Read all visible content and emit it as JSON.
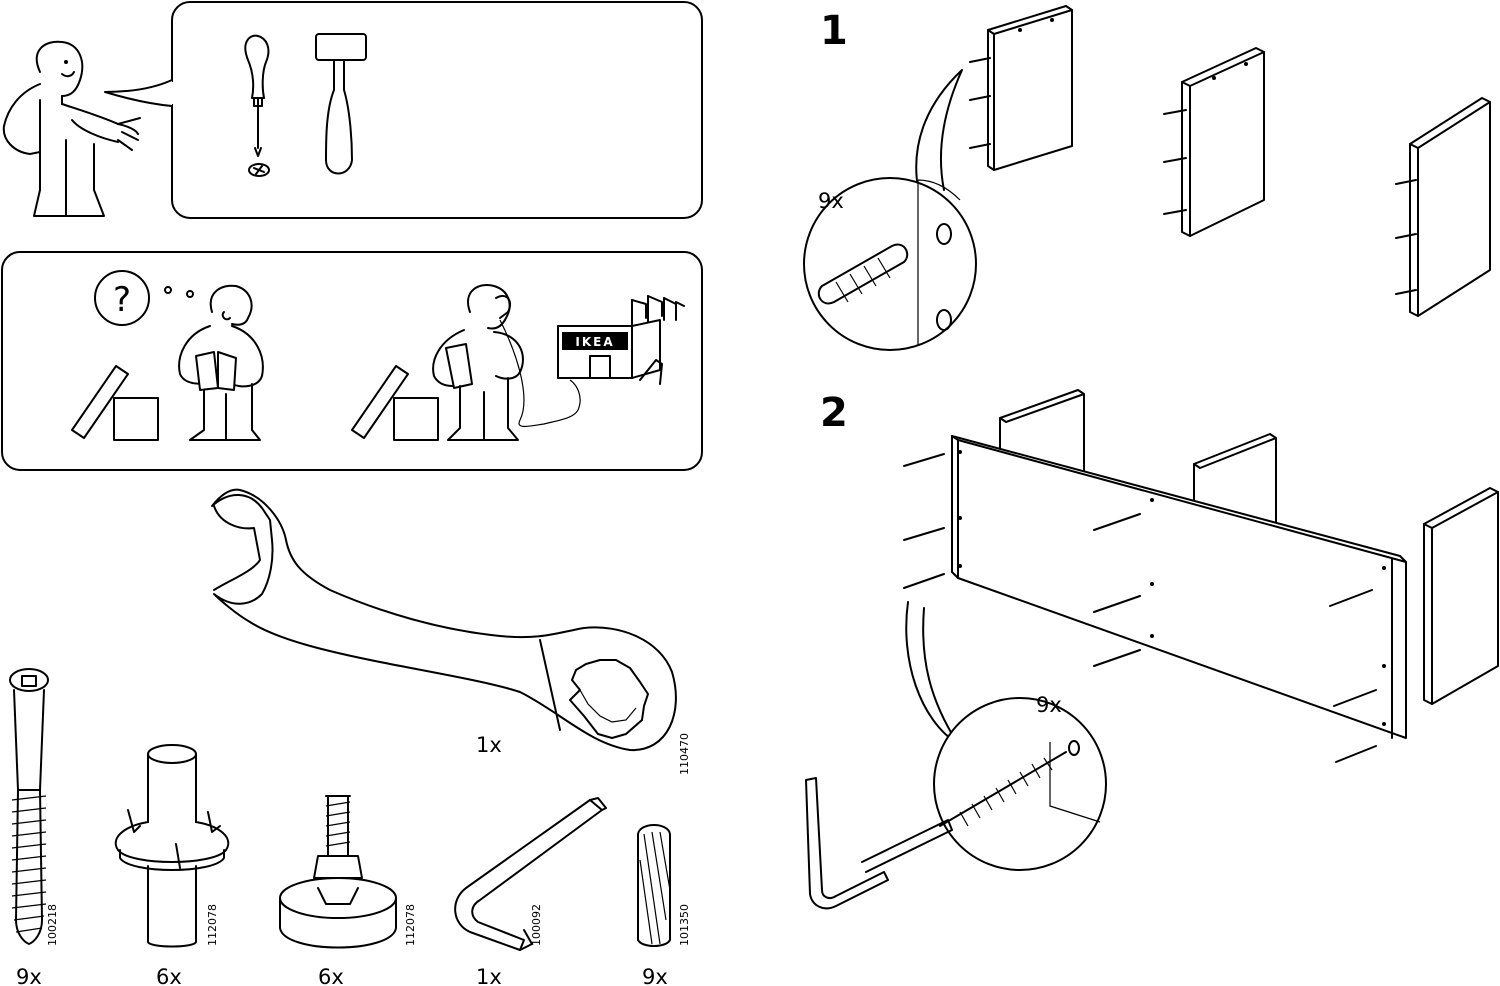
{
  "panels": {
    "tools": {
      "items": [
        "screwdriver-phillips",
        "mallet"
      ]
    },
    "help": {
      "question_mark": "?",
      "store_sign": "IKEA"
    }
  },
  "wrench": {
    "quantity": "1x",
    "code": "110470"
  },
  "parts": [
    {
      "name": "long-screw",
      "quantity": "9x",
      "code": "100218"
    },
    {
      "name": "sleeve-nut",
      "quantity": "6x",
      "code": "112078"
    },
    {
      "name": "leveling-foot",
      "quantity": "6x",
      "code": "112078"
    },
    {
      "name": "allen-key",
      "quantity": "1x",
      "code": "100092"
    },
    {
      "name": "wooden-dowel",
      "quantity": "9x",
      "code": "101350"
    }
  ],
  "steps": [
    {
      "number": "1",
      "callout_quantity": "9x"
    },
    {
      "number": "2",
      "callout_quantity": "9x"
    }
  ]
}
